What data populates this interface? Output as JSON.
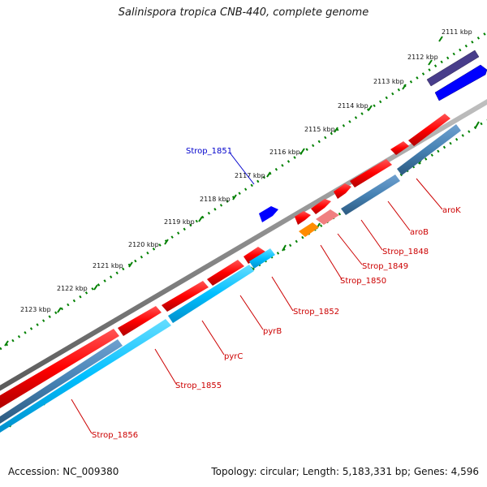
{
  "title": "Salinispora tropica CNB-440, complete genome",
  "footer": {
    "accession": "Accession: NC_009380",
    "summary": "Topology: circular; Length: 5,183,331 bp; Genes: 4,596"
  },
  "ticks": [
    {
      "label": "2111 kbp"
    },
    {
      "label": "2112 kbp"
    },
    {
      "label": "2113 kbp"
    },
    {
      "label": "2114 kbp"
    },
    {
      "label": "2115 kbp"
    },
    {
      "label": "2116 kbp"
    },
    {
      "label": "2117 kbp"
    },
    {
      "label": "2118 kbp"
    },
    {
      "label": "2119 kbp"
    },
    {
      "label": "2120 kbp"
    },
    {
      "label": "2121 kbp"
    },
    {
      "label": "2122 kbp"
    },
    {
      "label": "2123 kbp"
    }
  ],
  "gene_labels": [
    {
      "name": "Strop_1851",
      "color": "#0000cc"
    },
    {
      "name": "aroK",
      "color": "#cc0000"
    },
    {
      "name": "aroB",
      "color": "#cc0000"
    },
    {
      "name": "Strop_1848",
      "color": "#cc0000"
    },
    {
      "name": "Strop_1849",
      "color": "#cc0000"
    },
    {
      "name": "Strop_1850",
      "color": "#cc0000"
    },
    {
      "name": "Strop_1852",
      "color": "#cc0000"
    },
    {
      "name": "pyrB",
      "color": "#cc0000"
    },
    {
      "name": "pyrC",
      "color": "#cc0000"
    },
    {
      "name": "Strop_1855",
      "color": "#cc0000"
    },
    {
      "name": "Strop_1856",
      "color": "#cc0000"
    }
  ],
  "colors": {
    "backbone": "#8a8a8a",
    "tick_dots": "#008000",
    "cds_forward": "#ff0000",
    "cds_other": "#4682b4",
    "cds_light": "#00bfff",
    "purple": "#483d8b",
    "blue": "#0000ff",
    "orange": "#ff8c00",
    "pink": "#f08080"
  }
}
